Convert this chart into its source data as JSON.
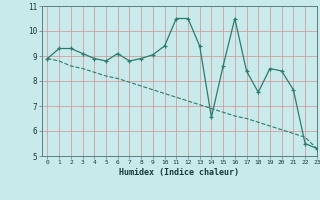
{
  "xlabel": "Humidex (Indice chaleur)",
  "x_values": [
    0,
    1,
    2,
    3,
    4,
    5,
    6,
    7,
    8,
    9,
    10,
    11,
    12,
    13,
    14,
    15,
    16,
    17,
    18,
    19,
    20,
    21,
    22,
    23
  ],
  "y_line1": [
    8.9,
    9.3,
    9.3,
    9.1,
    8.9,
    8.8,
    9.1,
    8.8,
    8.9,
    9.05,
    9.4,
    10.5,
    10.5,
    9.4,
    6.55,
    8.6,
    10.5,
    8.4,
    7.55,
    8.5,
    8.4,
    7.65,
    5.5,
    5.3
  ],
  "y_line2": [
    8.9,
    8.8,
    8.6,
    8.5,
    8.35,
    8.2,
    8.1,
    7.95,
    7.8,
    7.65,
    7.5,
    7.35,
    7.2,
    7.05,
    6.9,
    6.75,
    6.6,
    6.5,
    6.35,
    6.2,
    6.05,
    5.9,
    5.75,
    5.3
  ],
  "line_color": "#2a7d6e",
  "bg_color": "#c8eaea",
  "grid_color": "#d49090",
  "ylim": [
    5,
    11
  ],
  "xlim": [
    -0.5,
    23
  ]
}
